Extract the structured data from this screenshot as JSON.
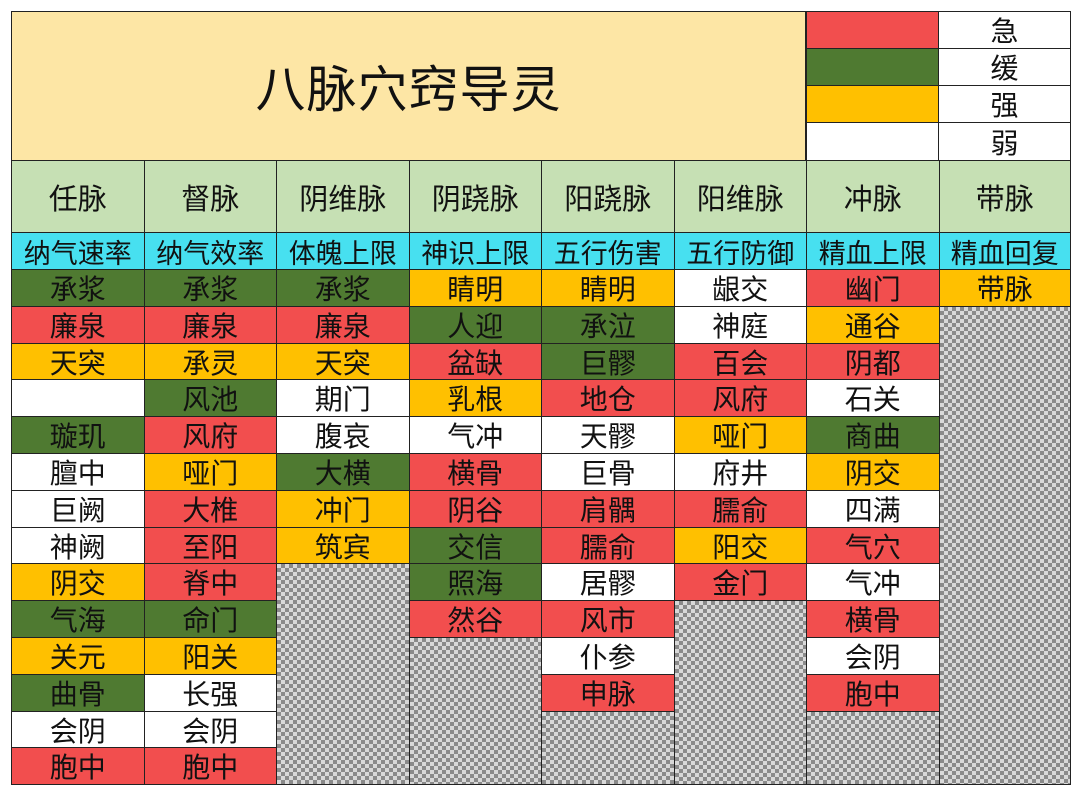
{
  "title": "八脉穴窍导灵",
  "colors": {
    "ji": "#f24e4e",
    "huan": "#4f7a31",
    "qiang": "#ffc000",
    "ruo": "#ffffff",
    "title_bg": "#fde6a5",
    "header_bg": "#c6e0b4",
    "subheader_bg": "#47e0f0"
  },
  "legend": [
    {
      "label": "急",
      "key": "ji"
    },
    {
      "label": "缓",
      "key": "huan"
    },
    {
      "label": "强",
      "key": "qiang"
    },
    {
      "label": "弱",
      "key": "ruo"
    }
  ],
  "columns": [
    {
      "name": "任脉",
      "attr": "纳气速率",
      "cells": [
        {
          "text": "承浆",
          "c": "huan"
        },
        {
          "text": "廉泉",
          "c": "ji"
        },
        {
          "text": "天突",
          "c": "qiang"
        },
        {
          "text": "",
          "c": "ruo"
        },
        {
          "text": "璇玑",
          "c": "huan"
        },
        {
          "text": "膻中",
          "c": "ruo"
        },
        {
          "text": "巨阙",
          "c": "ruo"
        },
        {
          "text": "神阙",
          "c": "ruo"
        },
        {
          "text": "阴交",
          "c": "qiang"
        },
        {
          "text": "气海",
          "c": "huan"
        },
        {
          "text": "关元",
          "c": "qiang"
        },
        {
          "text": "曲骨",
          "c": "huan"
        },
        {
          "text": "会阴",
          "c": "ruo"
        },
        {
          "text": "胞中",
          "c": "ji"
        }
      ]
    },
    {
      "name": "督脉",
      "attr": "纳气效率",
      "cells": [
        {
          "text": "承浆",
          "c": "huan"
        },
        {
          "text": "廉泉",
          "c": "ji"
        },
        {
          "text": "承灵",
          "c": "qiang"
        },
        {
          "text": "风池",
          "c": "huan"
        },
        {
          "text": "风府",
          "c": "ji"
        },
        {
          "text": "哑门",
          "c": "qiang"
        },
        {
          "text": "大椎",
          "c": "ji"
        },
        {
          "text": "至阳",
          "c": "ji"
        },
        {
          "text": "脊中",
          "c": "ji"
        },
        {
          "text": "命门",
          "c": "huan"
        },
        {
          "text": "阳关",
          "c": "qiang"
        },
        {
          "text": "长强",
          "c": "ruo"
        },
        {
          "text": "会阴",
          "c": "ruo"
        },
        {
          "text": "胞中",
          "c": "ji"
        }
      ]
    },
    {
      "name": "阴维脉",
      "attr": "体魄上限",
      "cells": [
        {
          "text": "承浆",
          "c": "huan"
        },
        {
          "text": "廉泉",
          "c": "ji"
        },
        {
          "text": "天突",
          "c": "qiang"
        },
        {
          "text": "期门",
          "c": "ruo"
        },
        {
          "text": "腹哀",
          "c": "ruo"
        },
        {
          "text": "大横",
          "c": "huan"
        },
        {
          "text": "冲门",
          "c": "qiang"
        },
        {
          "text": "筑宾",
          "c": "qiang"
        }
      ]
    },
    {
      "name": "阴跷脉",
      "attr": "神识上限",
      "cells": [
        {
          "text": "睛明",
          "c": "qiang"
        },
        {
          "text": "人迎",
          "c": "huan"
        },
        {
          "text": "盆缺",
          "c": "ji"
        },
        {
          "text": "乳根",
          "c": "qiang"
        },
        {
          "text": "气冲",
          "c": "ruo"
        },
        {
          "text": "横骨",
          "c": "ji"
        },
        {
          "text": "阴谷",
          "c": "ji"
        },
        {
          "text": "交信",
          "c": "huan"
        },
        {
          "text": "照海",
          "c": "huan"
        },
        {
          "text": "然谷",
          "c": "ji"
        }
      ]
    },
    {
      "name": "阳跷脉",
      "attr": "五行伤害",
      "cells": [
        {
          "text": "睛明",
          "c": "qiang"
        },
        {
          "text": "承泣",
          "c": "huan"
        },
        {
          "text": "巨髎",
          "c": "huan"
        },
        {
          "text": "地仓",
          "c": "ji"
        },
        {
          "text": "天髎",
          "c": "ruo"
        },
        {
          "text": "巨骨",
          "c": "ruo"
        },
        {
          "text": "肩髃",
          "c": "ji"
        },
        {
          "text": "臑俞",
          "c": "ji"
        },
        {
          "text": "居髎",
          "c": "ruo"
        },
        {
          "text": "风市",
          "c": "ji"
        },
        {
          "text": "仆参",
          "c": "ruo"
        },
        {
          "text": "申脉",
          "c": "ji"
        }
      ]
    },
    {
      "name": "阳维脉",
      "attr": "五行防御",
      "cells": [
        {
          "text": "龈交",
          "c": "ruo"
        },
        {
          "text": "神庭",
          "c": "ruo"
        },
        {
          "text": "百会",
          "c": "ji"
        },
        {
          "text": "风府",
          "c": "ji"
        },
        {
          "text": "哑门",
          "c": "qiang"
        },
        {
          "text": "府井",
          "c": "ruo"
        },
        {
          "text": "臑俞",
          "c": "ji"
        },
        {
          "text": "阳交",
          "c": "qiang"
        },
        {
          "text": "金门",
          "c": "ji"
        }
      ]
    },
    {
      "name": "冲脉",
      "attr": "精血上限",
      "cells": [
        {
          "text": "幽门",
          "c": "ji"
        },
        {
          "text": "通谷",
          "c": "qiang"
        },
        {
          "text": "阴都",
          "c": "ji"
        },
        {
          "text": "石关",
          "c": "ruo"
        },
        {
          "text": "商曲",
          "c": "huan"
        },
        {
          "text": "阴交",
          "c": "qiang"
        },
        {
          "text": "四满",
          "c": "ruo"
        },
        {
          "text": "气穴",
          "c": "ji"
        },
        {
          "text": "气冲",
          "c": "ruo"
        },
        {
          "text": "横骨",
          "c": "ji"
        },
        {
          "text": "会阴",
          "c": "ruo"
        },
        {
          "text": "胞中",
          "c": "ji"
        }
      ]
    },
    {
      "name": "带脉",
      "attr": "精血回复",
      "cells": [
        {
          "text": "带脉",
          "c": "qiang"
        }
      ]
    }
  ]
}
